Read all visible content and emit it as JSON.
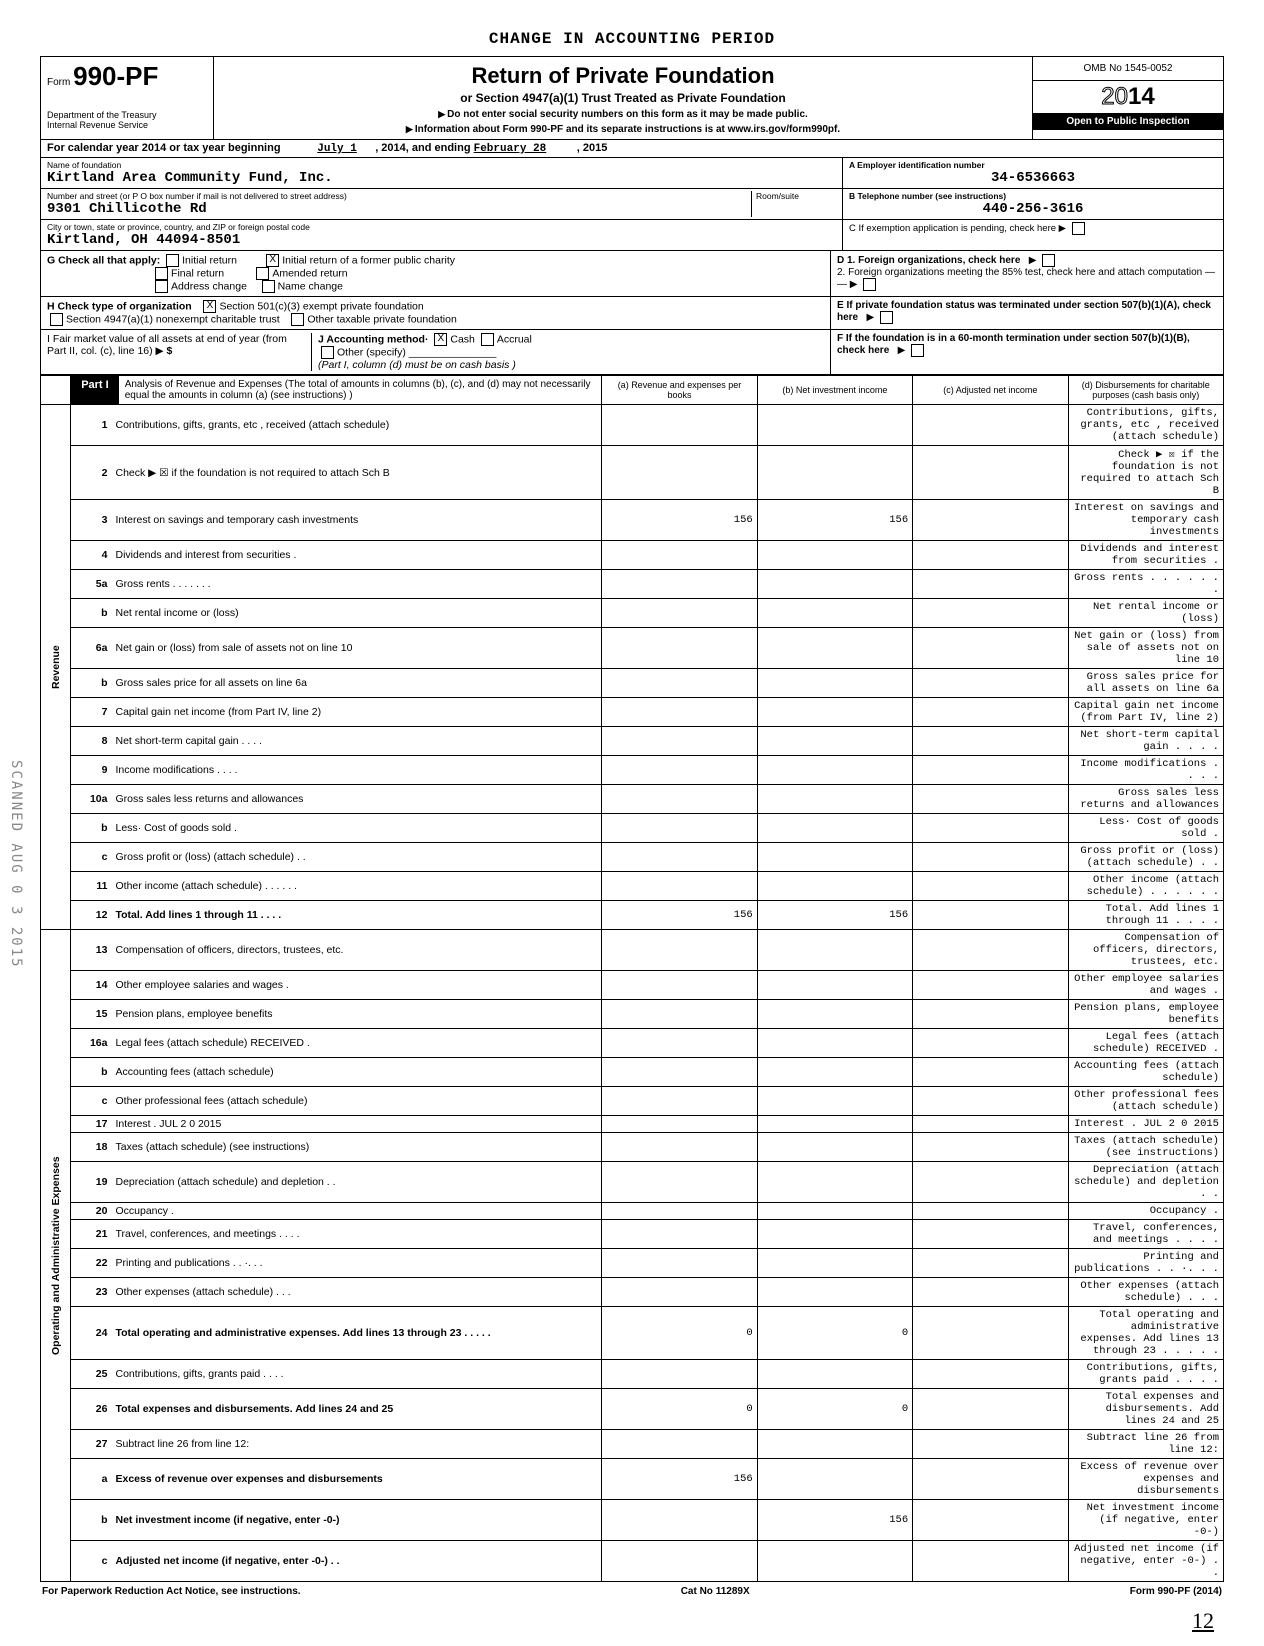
{
  "topBanner": "CHANGE IN ACCOUNTING PERIOD",
  "form": {
    "prefix": "Form",
    "number": "990-PF",
    "dept": "Department of the Treasury\nInternal Revenue Service",
    "title": "Return of Private Foundation",
    "subtitle": "or Section 4947(a)(1) Trust Treated as Private Foundation",
    "note1": "Do not enter social security numbers on this form as it may be made public.",
    "note2": "Information about Form 990-PF and its separate instructions is at www.irs.gov/form990pf.",
    "omb": "OMB No 1545-0052",
    "yearPrefix": "20",
    "yearBold": "14",
    "inspect": "Open to Public Inspection"
  },
  "calendar": {
    "lead": "For calendar year 2014 or tax year beginning",
    "begin": "July 1",
    "mid": ", 2014, and ending",
    "end": "February 28",
    "endYear": ", 2015"
  },
  "foundation": {
    "nameLabel": "Name of foundation",
    "name": "Kirtland Area Community Fund, Inc.",
    "addrLabel": "Number and street (or P O box number if mail is not delivered to street address)",
    "roomLabel": "Room/suite",
    "addr": "9301 Chillicothe Rd",
    "cityLabel": "City or town, state or province, country, and ZIP or foreign postal code",
    "city": "Kirtland, OH  44094-8501",
    "einLabel": "A  Employer identification number",
    "ein": "34-6536663",
    "phoneLabel": "B  Telephone number (see instructions)",
    "phone": "440-256-3616",
    "cLabel": "C  If exemption application is pending, check here"
  },
  "checks": {
    "G": "G  Check all that apply:",
    "G1": "Initial return",
    "G2": "Initial return of a former public charity",
    "G3": "Final return",
    "G4": "Amended return",
    "G5": "Address change",
    "G6": "Name change",
    "H": "H  Check type of organization",
    "H1": "Section 501(c)(3) exempt private foundation",
    "H2": "Section 4947(a)(1) nonexempt charitable trust",
    "H3": "Other taxable private foundation",
    "I": "I   Fair market value of all assets at end of year  (from Part II, col. (c), line 16)",
    "Iarrow": "$",
    "J": "J   Accounting method·",
    "J1": "Cash",
    "J2": "Accrual",
    "J3": "Other (specify)",
    "Jnote": "(Part I, column (d) must be on cash basis )",
    "D1": "D  1. Foreign organizations, check here",
    "D2": "2. Foreign organizations meeting the 85% test, check here and attach computation",
    "E": "E  If private foundation status was terminated under section 507(b)(1)(A), check here",
    "F": "F  If the foundation is in a 60-month termination under section 507(b)(1)(B), check here"
  },
  "part1": {
    "label": "Part I",
    "desc": "Analysis of Revenue and Expenses (The total of amounts in columns (b), (c), and (d) may not necessarily equal the amounts in column (a) (see instructions) )",
    "colA": "(a) Revenue and expenses per books",
    "colB": "(b) Net investment income",
    "colC": "(c) Adjusted net income",
    "colD": "(d) Disbursements for charitable purposes (cash basis only)"
  },
  "sideLabels": {
    "rev": "Revenue",
    "op": "Operating and Administrative Expenses"
  },
  "rows": [
    {
      "n": "1",
      "d": "Contributions, gifts, grants, etc , received (attach schedule)"
    },
    {
      "n": "2",
      "d": "Check ▶ ☒ if the foundation is not required to attach Sch B"
    },
    {
      "n": "3",
      "d": "Interest on savings and temporary cash investments",
      "a": "156",
      "b": "156"
    },
    {
      "n": "4",
      "d": "Dividends and interest from securities  ."
    },
    {
      "n": "5a",
      "d": "Gross rents .        .    .    .            .    .   ."
    },
    {
      "n": "b",
      "d": "Net rental income or (loss)"
    },
    {
      "n": "6a",
      "d": "Net gain or (loss) from sale of assets not on line 10"
    },
    {
      "n": "b",
      "d": "Gross sales price for all assets on line 6a"
    },
    {
      "n": "7",
      "d": "Capital gain net income (from Part IV, line 2)"
    },
    {
      "n": "8",
      "d": "Net short-term capital gain       .   .   .   ."
    },
    {
      "n": "9",
      "d": "Income modifications        .              .   .   ."
    },
    {
      "n": "10a",
      "d": "Gross sales less returns and allowances"
    },
    {
      "n": "b",
      "d": "Less· Cost of goods sold        ."
    },
    {
      "n": "c",
      "d": "Gross profit or (loss) (attach schedule)  .    ."
    },
    {
      "n": "11",
      "d": "Other income (attach schedule)   .   .   .   .   .   ."
    },
    {
      "n": "12",
      "d": "Total. Add lines 1 through 11     .       .    .    .",
      "a": "156",
      "b": "156",
      "bold": true
    },
    {
      "n": "13",
      "d": "Compensation of officers, directors, trustees, etc."
    },
    {
      "n": "14",
      "d": "Other employee salaries and wages       ."
    },
    {
      "n": "15",
      "d": "Pension plans, employee benefits"
    },
    {
      "n": "16a",
      "d": "Legal fees (attach schedule) RECEIVED ."
    },
    {
      "n": "b",
      "d": "Accounting fees (attach schedule)"
    },
    {
      "n": "c",
      "d": "Other professional fees (attach schedule)"
    },
    {
      "n": "17",
      "d": "Interest  .           JUL 2 0 2015"
    },
    {
      "n": "18",
      "d": "Taxes (attach schedule) (see instructions)"
    },
    {
      "n": "19",
      "d": "Depreciation (attach schedule) and depletion .  ."
    },
    {
      "n": "20",
      "d": "Occupancy       ."
    },
    {
      "n": "21",
      "d": "Travel, conferences, and meetings   .   .   .   ."
    },
    {
      "n": "22",
      "d": "Printing and publications        .   .   ·.   .   ."
    },
    {
      "n": "23",
      "d": "Other expenses (attach schedule)    .    .    ."
    },
    {
      "n": "24",
      "d": "Total operating and administrative expenses. Add lines 13 through 23 .  .         .    .   .",
      "a": "0",
      "b": "0",
      "bold": true
    },
    {
      "n": "25",
      "d": "Contributions, gifts, grants paid   .   .   .   ."
    },
    {
      "n": "26",
      "d": "Total expenses and disbursements. Add lines 24 and 25",
      "a": "0",
      "b": "0",
      "bold": true
    },
    {
      "n": "27",
      "d": "Subtract line 26 from line 12:"
    },
    {
      "n": "a",
      "d": "Excess of revenue over expenses and disbursements",
      "a": "156",
      "bold": true
    },
    {
      "n": "b",
      "d": "Net investment income (if negative, enter -0-)",
      "b": "156",
      "bold": true
    },
    {
      "n": "c",
      "d": "Adjusted net income (if negative, enter -0-)  .   .",
      "bold": true
    }
  ],
  "footer": {
    "left": "For Paperwork Reduction Act Notice, see instructions.",
    "mid": "Cat No  11289X",
    "right": "Form 990-PF (2014)"
  },
  "sideScanned": "SCANNED AUG 0 3 2015",
  "pageNum": "12"
}
